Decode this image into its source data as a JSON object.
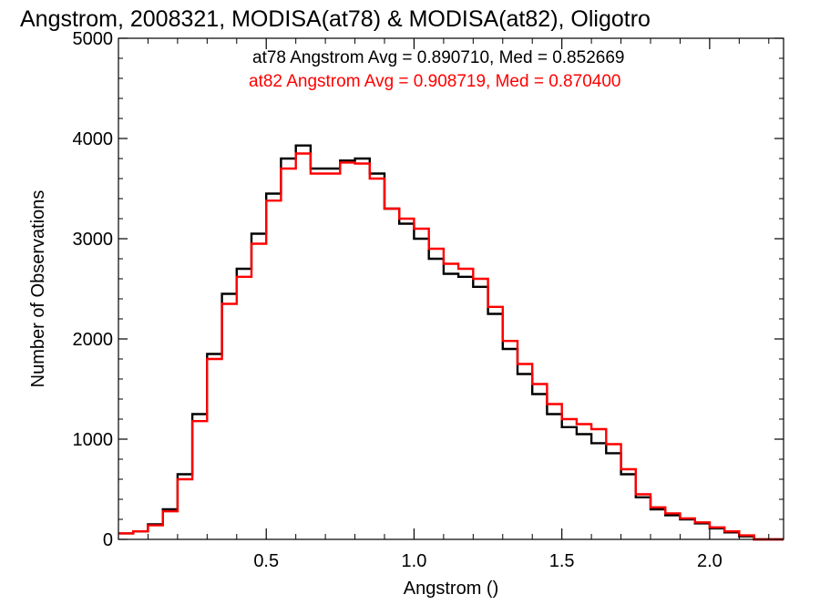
{
  "chart_data": {
    "type": "line",
    "style": "step-histogram",
    "title": "Angstrom, 2008321, MODISA(at78) & MODISA(at82), Oligotro",
    "xlabel": "Angstrom ()",
    "ylabel": "Number of Observations",
    "xlim": [
      0.0,
      2.25
    ],
    "ylim": [
      0,
      5000
    ],
    "xticks": [
      0.5,
      1.0,
      1.5,
      2.0
    ],
    "xtick_labels": [
      "0.5",
      "1.0",
      "1.5",
      "2.0"
    ],
    "yticks": [
      0,
      1000,
      2000,
      3000,
      4000,
      5000
    ],
    "ytick_labels": [
      "0",
      "1000",
      "2000",
      "3000",
      "4000",
      "5000"
    ],
    "grid": false,
    "annotations": [
      {
        "text": "at78 Angstrom Avg = 0.890710, Med = 0.852669",
        "color": "#000000"
      },
      {
        "text": "at82 Angstrom Avg = 0.908719, Med = 0.870400",
        "color": "#ff0000"
      }
    ],
    "x": [
      0.0,
      0.05,
      0.1,
      0.15,
      0.2,
      0.25,
      0.3,
      0.35,
      0.4,
      0.45,
      0.5,
      0.55,
      0.6,
      0.65,
      0.7,
      0.75,
      0.8,
      0.85,
      0.9,
      0.95,
      1.0,
      1.05,
      1.1,
      1.15,
      1.2,
      1.25,
      1.3,
      1.35,
      1.4,
      1.45,
      1.5,
      1.55,
      1.6,
      1.65,
      1.7,
      1.75,
      1.8,
      1.85,
      1.9,
      1.95,
      2.0,
      2.05,
      2.1,
      2.15,
      2.2,
      2.25
    ],
    "series": [
      {
        "name": "at78",
        "color": "#000000",
        "values": [
          60,
          80,
          150,
          300,
          650,
          1250,
          1850,
          2450,
          2700,
          3050,
          3450,
          3800,
          3930,
          3700,
          3700,
          3780,
          3800,
          3650,
          3300,
          3150,
          3000,
          2800,
          2650,
          2620,
          2520,
          2250,
          1900,
          1650,
          1450,
          1250,
          1120,
          1050,
          960,
          860,
          650,
          420,
          300,
          240,
          200,
          160,
          110,
          70,
          30,
          0,
          0,
          0
        ]
      },
      {
        "name": "at82",
        "color": "#ff0000",
        "values": [
          60,
          80,
          140,
          280,
          600,
          1180,
          1800,
          2350,
          2620,
          2950,
          3380,
          3700,
          3850,
          3650,
          3650,
          3760,
          3750,
          3600,
          3300,
          3200,
          3100,
          2900,
          2750,
          2700,
          2600,
          2320,
          1980,
          1750,
          1550,
          1350,
          1200,
          1150,
          1100,
          950,
          700,
          450,
          320,
          260,
          210,
          170,
          120,
          80,
          40,
          0,
          0,
          0
        ]
      }
    ]
  }
}
